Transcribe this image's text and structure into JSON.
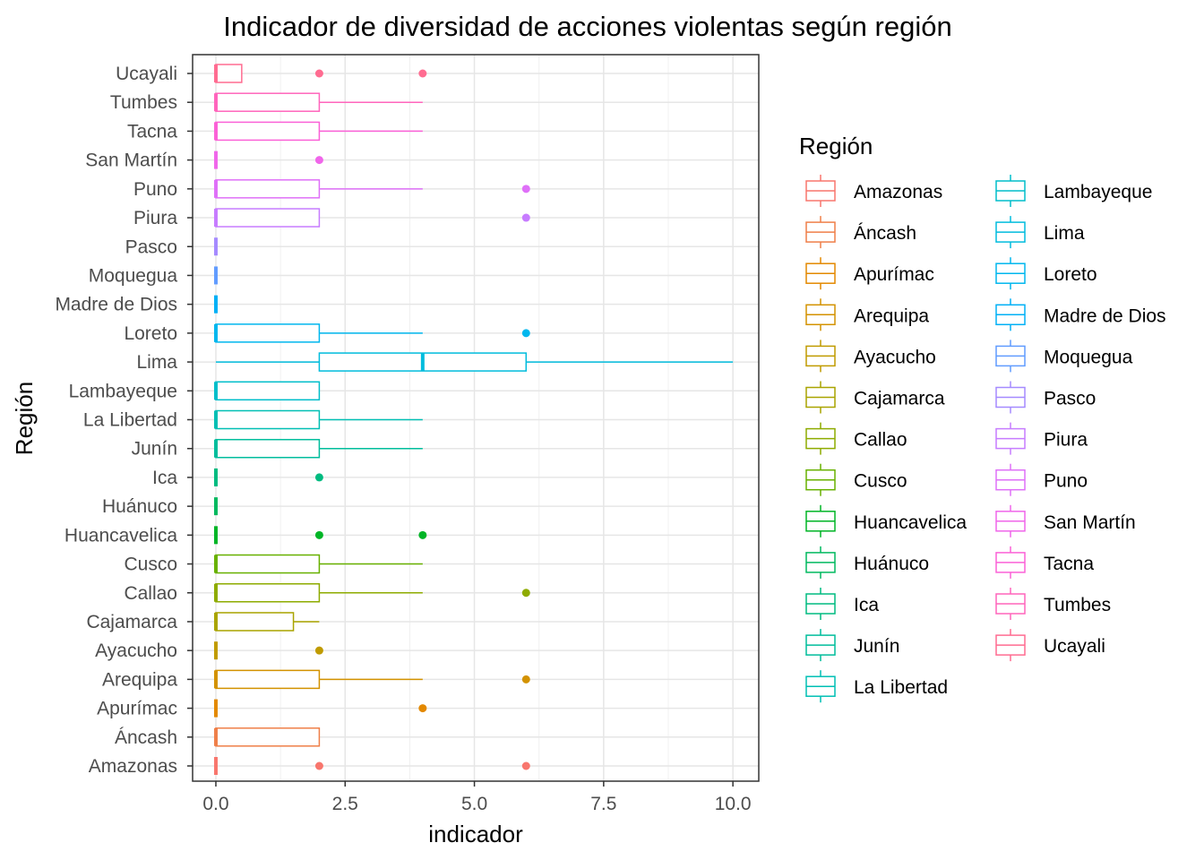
{
  "chart_data": {
    "type": "box",
    "title": "Indicador de diversidad de acciones violentas según región",
    "xlabel": "indicador",
    "ylabel": "Región",
    "xlim": [
      -0.45,
      10.5
    ],
    "x_ticks": [
      "0.0",
      "2.5",
      "5.0",
      "7.5",
      "10.0"
    ],
    "x_tick_values": [
      0,
      2.5,
      5,
      7.5,
      10
    ],
    "grid": true,
    "legend": {
      "title": "Región",
      "position": "right",
      "columns": 2
    },
    "series": [
      {
        "name": "Amazonas",
        "color": "#F8766D",
        "min": 0,
        "q1": 0,
        "median": 0,
        "q3": 0,
        "max": 0,
        "outliers": [
          2,
          6
        ]
      },
      {
        "name": "Áncash",
        "color": "#EF7F49",
        "min": 0,
        "q1": 0,
        "median": 0,
        "q3": 2,
        "max": 2,
        "outliers": []
      },
      {
        "name": "Apurímac",
        "color": "#E38900",
        "min": 0,
        "q1": 0,
        "median": 0,
        "q3": 0,
        "max": 0,
        "outliers": [
          4
        ]
      },
      {
        "name": "Arequipa",
        "color": "#D39200",
        "min": 0,
        "q1": 0,
        "median": 0,
        "q3": 2,
        "max": 4,
        "outliers": [
          6
        ]
      },
      {
        "name": "Ayacucho",
        "color": "#C09B00",
        "min": 0,
        "q1": 0,
        "median": 0,
        "q3": 0,
        "max": 0,
        "outliers": [
          2
        ]
      },
      {
        "name": "Cajamarca",
        "color": "#A9A400",
        "min": 0,
        "q1": 0,
        "median": 0,
        "q3": 1.5,
        "max": 2,
        "outliers": []
      },
      {
        "name": "Callao",
        "color": "#8EAB00",
        "min": 0,
        "q1": 0,
        "median": 0,
        "q3": 2,
        "max": 4,
        "outliers": [
          6
        ]
      },
      {
        "name": "Cusco",
        "color": "#68B100",
        "min": 0,
        "q1": 0,
        "median": 0,
        "q3": 2,
        "max": 4,
        "outliers": []
      },
      {
        "name": "Huancavelica",
        "color": "#00B526",
        "min": 0,
        "q1": 0,
        "median": 0,
        "q3": 0,
        "max": 0,
        "outliers": [
          2,
          4
        ]
      },
      {
        "name": "Huánuco",
        "color": "#00B95F",
        "min": 0,
        "q1": 0,
        "median": 0,
        "q3": 0,
        "max": 0,
        "outliers": []
      },
      {
        "name": "Ica",
        "color": "#00BB80",
        "min": 0,
        "q1": 0,
        "median": 0,
        "q3": 0,
        "max": 0,
        "outliers": [
          2
        ]
      },
      {
        "name": "Junín",
        "color": "#00BD9C",
        "min": 0,
        "q1": 0,
        "median": 0,
        "q3": 2,
        "max": 4,
        "outliers": []
      },
      {
        "name": "La Libertad",
        "color": "#00BFB4",
        "min": 0,
        "q1": 0,
        "median": 0,
        "q3": 2,
        "max": 4,
        "outliers": []
      },
      {
        "name": "Lambayeque",
        "color": "#00BECA",
        "min": 0,
        "q1": 0,
        "median": 0,
        "q3": 2,
        "max": 2,
        "outliers": []
      },
      {
        "name": "Lima",
        "color": "#00BCDD",
        "min": 0,
        "q1": 2,
        "median": 4,
        "q3": 6,
        "max": 10,
        "outliers": []
      },
      {
        "name": "Loreto",
        "color": "#00B7EE",
        "min": 0,
        "q1": 0,
        "median": 0,
        "q3": 2,
        "max": 4,
        "outliers": [
          6
        ]
      },
      {
        "name": "Madre de Dios",
        "color": "#00B0F6",
        "min": 0,
        "q1": 0,
        "median": 0,
        "q3": 0,
        "max": 0,
        "outliers": []
      },
      {
        "name": "Moquegua",
        "color": "#619CFF",
        "min": 0,
        "q1": 0,
        "median": 0,
        "q3": 0,
        "max": 0,
        "outliers": []
      },
      {
        "name": "Pasco",
        "color": "#A58AFF",
        "min": 0,
        "q1": 0,
        "median": 0,
        "q3": 0,
        "max": 0,
        "outliers": []
      },
      {
        "name": "Piura",
        "color": "#C77CFF",
        "min": 0,
        "q1": 0,
        "median": 0,
        "q3": 2,
        "max": 2,
        "outliers": [
          6
        ]
      },
      {
        "name": "Puno",
        "color": "#DF70F8",
        "min": 0,
        "q1": 0,
        "median": 0,
        "q3": 2,
        "max": 4,
        "outliers": [
          6
        ]
      },
      {
        "name": "San Martín",
        "color": "#F066EA",
        "min": 0,
        "q1": 0,
        "median": 0,
        "q3": 0,
        "max": 0,
        "outliers": [
          2
        ]
      },
      {
        "name": "Tacna",
        "color": "#FB61D7",
        "min": 0,
        "q1": 0,
        "median": 0,
        "q3": 2,
        "max": 4,
        "outliers": []
      },
      {
        "name": "Tumbes",
        "color": "#FF65BC",
        "min": 0,
        "q1": 0,
        "median": 0,
        "q3": 2,
        "max": 4,
        "outliers": []
      },
      {
        "name": "Ucayali",
        "color": "#FF6C91",
        "min": 0,
        "q1": 0,
        "median": 0,
        "q3": 0.5,
        "max": 0.5,
        "outliers": [
          2,
          4
        ]
      }
    ]
  }
}
